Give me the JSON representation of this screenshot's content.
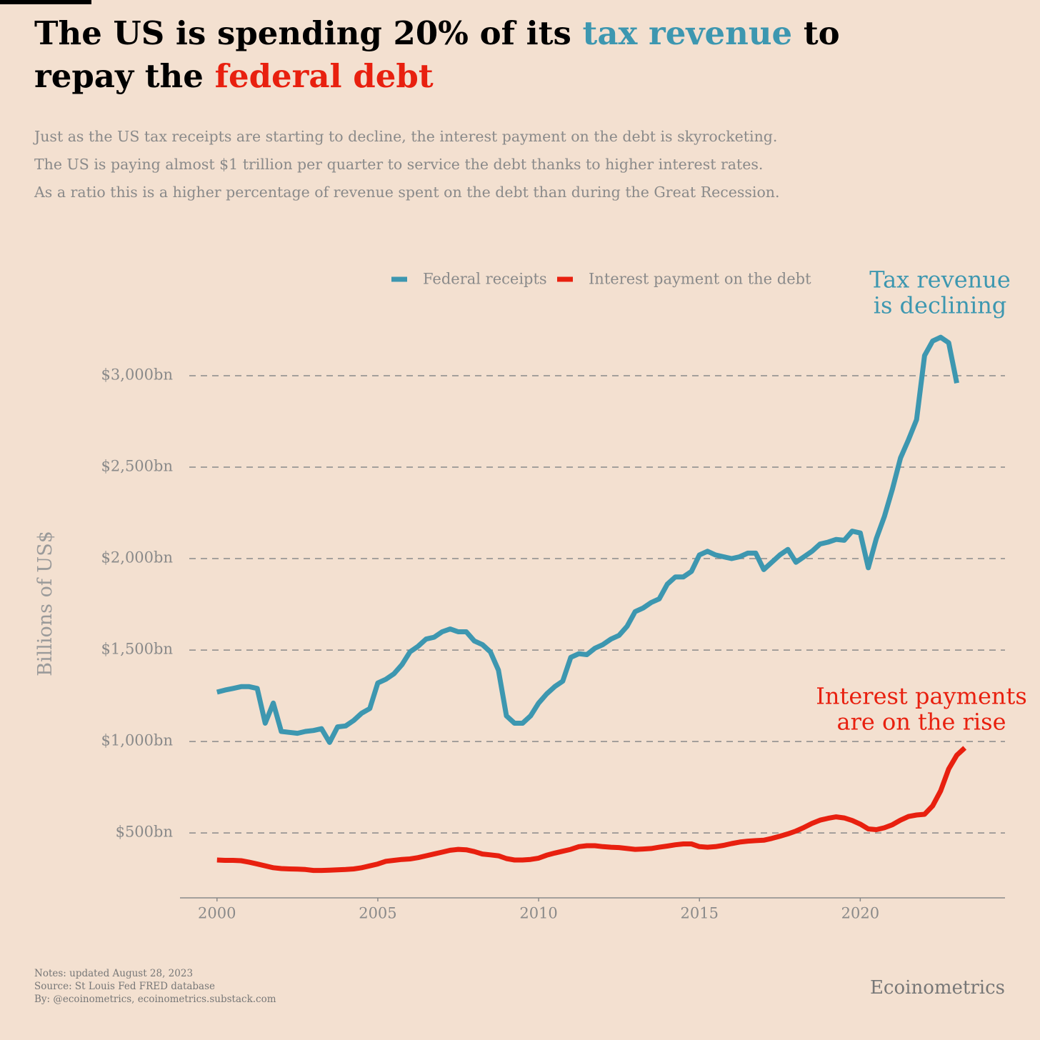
{
  "chart_data": {
    "type": "line",
    "title": [
      "The US is spending 20% of its",
      "tax revenue",
      "to",
      "repay the",
      "federal debt"
    ],
    "subtitle": [
      "Just as the US tax receipts are starting to decline, the interest payment on the debt is skyrocketing.",
      "The US is paying almost $1 trillion per quarter to service the debt thanks to higher interest rates.",
      "As a ratio this is a higher percentage of revenue spent on the debt than during the Great Recession."
    ],
    "y_label": "Billions of US$",
    "annotations": [
      {
        "lines": [
          "Tax revenue",
          "is declining"
        ],
        "color": "#3d97b0"
      },
      {
        "lines": [
          "Interest payments",
          "are on the rise"
        ],
        "color": "#e8200f"
      }
    ],
    "notes": [
      "Notes: updated August 28, 2023",
      "Source: St Louis Fed FRED database",
      "By: @ecoinometrics, ecoinometrics.substack.com"
    ],
    "brand": "Ecoinometrics",
    "legend": "top",
    "grid": true,
    "xlim": [
      1998.85,
      2024.5
    ],
    "xticks": [
      2000,
      2005,
      2010,
      2015,
      2020
    ],
    "ylim": [
      145,
      3300
    ],
    "yticks": [
      {
        "value": 500,
        "label": "$500bn"
      },
      {
        "value": 1000,
        "label": "$1,000bn"
      },
      {
        "value": 1500,
        "label": "$1,500bn"
      },
      {
        "value": 2000,
        "label": "$2,000bn"
      },
      {
        "value": 2500,
        "label": "$2,500bn"
      },
      {
        "value": 3000,
        "label": "$3,000bn"
      }
    ],
    "x": [
      2000,
      2000.25,
      2000.5,
      2000.75,
      2001,
      2001.25,
      2001.5,
      2001.75,
      2002,
      2002.25,
      2002.5,
      2002.75,
      2003,
      2003.25,
      2003.5,
      2003.75,
      2004,
      2004.25,
      2004.5,
      2004.75,
      2005,
      2005.25,
      2005.5,
      2005.75,
      2006,
      2006.25,
      2006.5,
      2006.75,
      2007,
      2007.25,
      2007.5,
      2007.75,
      2008,
      2008.25,
      2008.5,
      2008.75,
      2009,
      2009.25,
      2009.5,
      2009.75,
      2010,
      2010.25,
      2010.5,
      2010.75,
      2011,
      2011.25,
      2011.5,
      2011.75,
      2012,
      2012.25,
      2012.5,
      2012.75,
      2013,
      2013.25,
      2013.5,
      2013.75,
      2014,
      2014.25,
      2014.5,
      2014.75,
      2015,
      2015.25,
      2015.5,
      2015.75,
      2016,
      2016.25,
      2016.5,
      2016.75,
      2017,
      2017.25,
      2017.5,
      2017.75,
      2018,
      2018.25,
      2018.5,
      2018.75,
      2019,
      2019.25,
      2019.5,
      2019.75,
      2020,
      2020.25,
      2020.5,
      2020.75,
      2021,
      2021.25,
      2021.5,
      2021.75,
      2022,
      2022.25,
      2022.5,
      2022.75,
      2023,
      2023.25
    ],
    "series": [
      {
        "name": "Federal receipts",
        "color": "#3d97b0",
        "values": [
          1270,
          1281,
          1290,
          1300,
          1300,
          1290,
          1100,
          1210,
          1055,
          1050,
          1045,
          1055,
          1060,
          1070,
          995,
          1080,
          1085,
          1115,
          1155,
          1180,
          1320,
          1340,
          1370,
          1420,
          1490,
          1520,
          1560,
          1570,
          1600,
          1615,
          1600,
          1600,
          1550,
          1530,
          1490,
          1390,
          1140,
          1100,
          1100,
          1140,
          1210,
          1260,
          1300,
          1330,
          1460,
          1480,
          1475,
          1510,
          1530,
          1560,
          1580,
          1630,
          1710,
          1730,
          1760,
          1780,
          1860,
          1900,
          1900,
          1930,
          2020,
          2040,
          2020,
          2010,
          2000,
          2010,
          2030,
          2030,
          1940,
          1980,
          2020,
          2050,
          1980,
          2010,
          2040,
          2080,
          2090,
          2105,
          2100,
          2150,
          2140,
          1950,
          2110,
          2230,
          2380,
          2550,
          2650,
          2760,
          3110,
          3190,
          3210,
          3180,
          2960,
          null
        ]
      },
      {
        "name": "Interest payment on the debt",
        "color": "#e8200f",
        "values": [
          352,
          350,
          350,
          348,
          340,
          330,
          320,
          310,
          305,
          303,
          302,
          300,
          295,
          295,
          296,
          298,
          300,
          303,
          310,
          320,
          330,
          345,
          350,
          355,
          358,
          365,
          375,
          385,
          395,
          405,
          410,
          408,
          398,
          385,
          380,
          375,
          360,
          352,
          352,
          355,
          362,
          378,
          390,
          400,
          410,
          425,
          430,
          430,
          425,
          422,
          420,
          415,
          410,
          412,
          415,
          422,
          428,
          435,
          440,
          440,
          425,
          422,
          425,
          432,
          442,
          450,
          455,
          458,
          460,
          470,
          482,
          495,
          510,
          530,
          552,
          570,
          580,
          588,
          582,
          568,
          548,
          522,
          518,
          528,
          545,
          570,
          590,
          598,
          602,
          648,
          730,
          850,
          925,
          965
        ]
      }
    ]
  }
}
